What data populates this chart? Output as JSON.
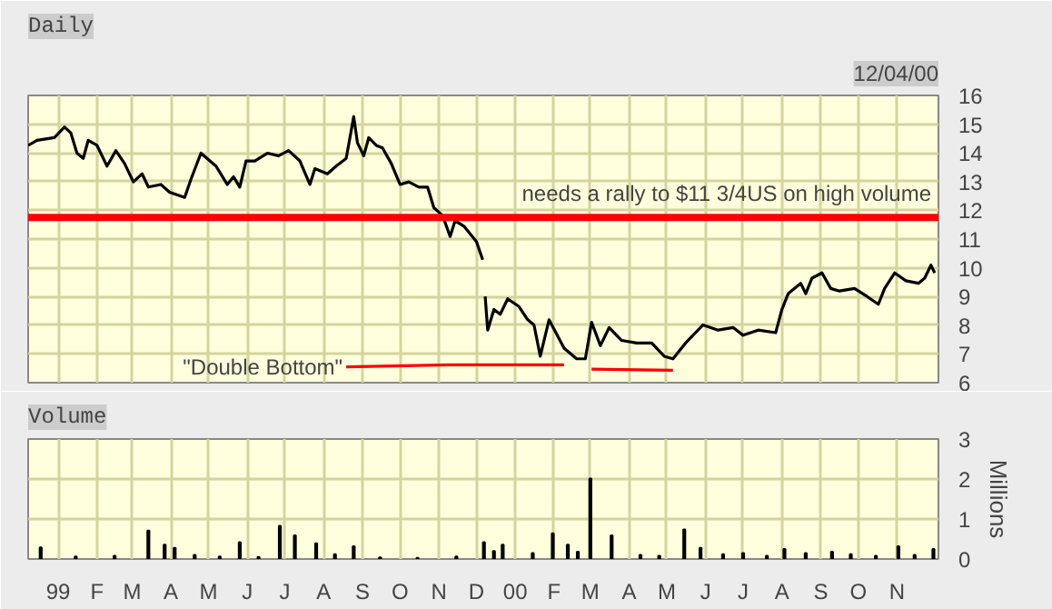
{
  "chart_data": [
    {
      "type": "line",
      "title": "Daily",
      "subtitle": "12/04/00",
      "xlim": [
        "1998-12-08",
        "2000-12-04"
      ],
      "ylim": [
        6,
        16
      ],
      "yticks": [
        6,
        7,
        8,
        9,
        10,
        11,
        12,
        13,
        14,
        15,
        16
      ],
      "xticks": [
        {
          "value": "1999-01-01",
          "label": null
        },
        {
          "value": "1999-02-01",
          "label": null
        },
        {
          "value": "1999-03-01",
          "label": null
        },
        {
          "value": "1999-04-01",
          "label": null
        },
        {
          "value": "1999-05-01",
          "label": null
        },
        {
          "value": "1999-06-01",
          "label": null
        },
        {
          "value": "1999-07-01",
          "label": null
        },
        {
          "value": "1999-08-01",
          "label": null
        },
        {
          "value": "1999-09-01",
          "label": null
        },
        {
          "value": "1999-10-01",
          "label": null
        },
        {
          "value": "1999-11-01",
          "label": null
        },
        {
          "value": "1999-12-01",
          "label": null
        },
        {
          "value": "2000-01-01",
          "label": null
        },
        {
          "value": "2000-02-01",
          "label": null
        },
        {
          "value": "2000-03-01",
          "label": null
        },
        {
          "value": "2000-04-01",
          "label": null
        },
        {
          "value": "2000-05-01",
          "label": null
        },
        {
          "value": "2000-06-01",
          "label": null
        },
        {
          "value": "2000-07-01",
          "label": null
        },
        {
          "value": "2000-08-01",
          "label": null
        },
        {
          "value": "2000-09-01",
          "label": null
        },
        {
          "value": "2000-10-01",
          "label": null
        },
        {
          "value": "2000-11-01",
          "label": null
        }
      ],
      "tick_labels": "y",
      "grid": true,
      "line_style": "solid",
      "marker": "none",
      "series": [
        {
          "color": "#000000",
          "x": [
            "1998-12-08",
            "1998-12-15",
            "1998-12-29",
            "1999-01-06",
            "1999-01-11",
            "1999-01-16",
            "1999-01-21",
            "1999-01-25",
            "1999-02-01",
            "1999-02-09",
            "1999-02-16",
            "1999-02-23",
            "1999-03-02",
            "1999-03-09",
            "1999-03-14",
            "1999-03-24",
            "1999-03-31",
            "1999-04-12",
            "1999-04-17",
            "1999-04-25",
            "1999-05-07",
            "1999-05-16",
            "1999-05-21",
            "1999-05-26",
            "1999-05-31",
            "1999-06-07",
            "1999-06-17",
            "1999-06-26",
            "1999-07-04",
            "1999-07-13",
            "1999-07-21",
            "1999-07-25",
            "1999-08-04",
            "1999-08-11",
            "1999-08-19",
            "1999-08-25",
            "1999-08-28",
            "1999-09-02",
            "1999-09-06",
            "1999-09-12",
            "1999-09-17",
            "1999-09-24",
            "1999-10-01",
            "1999-10-08",
            "1999-10-16",
            "1999-10-23",
            "1999-10-28",
            "1999-11-04",
            "1999-11-10",
            "1999-11-14",
            "1999-11-21",
            "1999-11-26",
            "1999-12-01",
            "1999-12-06",
            "1999-12-07",
            "1999-12-08",
            "1999-12-10",
            "1999-12-15",
            "1999-12-20",
            "1999-12-26",
            "2000-01-04",
            "2000-01-11",
            "2000-01-16",
            "2000-01-21",
            "2000-01-28",
            "2000-02-09",
            "2000-02-19",
            "2000-02-26",
            "2000-03-02",
            "2000-03-09",
            "2000-03-16",
            "2000-03-26",
            "2000-04-07",
            "2000-04-19",
            "2000-04-29",
            "2000-05-06",
            "2000-05-16",
            "2000-05-30",
            "2000-06-11",
            "2000-06-23",
            "2000-07-01",
            "2000-07-13",
            "2000-07-27",
            "2000-08-01",
            "2000-08-06",
            "2000-08-16",
            "2000-08-20",
            "2000-08-25",
            "2000-09-02",
            "2000-09-09",
            "2000-09-16",
            "2000-09-28",
            "2000-10-08",
            "2000-10-17",
            "2000-10-22",
            "2000-10-30",
            "2000-11-08",
            "2000-11-18",
            "2000-11-23",
            "2000-11-28",
            "2000-12-01"
          ],
          "values": [
            14.26,
            14.44,
            14.53,
            14.9,
            14.7,
            13.99,
            13.81,
            14.44,
            14.26,
            13.54,
            14.08,
            13.63,
            12.99,
            13.27,
            12.81,
            12.9,
            12.63,
            12.45,
            13.08,
            13.99,
            13.54,
            12.9,
            13.17,
            12.81,
            13.72,
            13.72,
            13.99,
            13.9,
            14.08,
            13.72,
            12.9,
            13.45,
            13.27,
            13.54,
            13.81,
            15.26,
            14.35,
            13.9,
            14.53,
            14.26,
            14.17,
            13.63,
            12.9,
            12.99,
            12.81,
            12.81,
            12.09,
            11.82,
            11.09,
            11.64,
            11.45,
            11.18,
            10.91,
            10.28,
            null,
            9.0,
            7.83,
            8.55,
            8.38,
            8.92,
            8.65,
            8.19,
            8.01,
            6.92,
            8.19,
            7.2,
            6.83,
            6.83,
            8.1,
            7.29,
            7.92,
            7.47,
            7.38,
            7.38,
            6.92,
            6.83,
            7.38,
            8.01,
            7.83,
            7.92,
            7.65,
            7.83,
            7.74,
            8.55,
            9.1,
            9.46,
            9.1,
            9.64,
            9.82,
            9.28,
            9.19,
            9.28,
            9.0,
            8.73,
            9.28,
            9.82,
            9.55,
            9.46,
            9.64,
            10.09,
            9.82
          ]
        },
        {
          "type": "line",
          "color": "#ff0000",
          "x": [
            "1999-08-19",
            "1999-11-10",
            "2000-02-09",
            "2000-02-10",
            "2000-03-02",
            "2000-05-06"
          ],
          "values": [
            6.55,
            6.62,
            6.62,
            null,
            6.47,
            6.43
          ]
        }
      ],
      "ref_lines": [
        {
          "axis": "y",
          "value": 11.75,
          "color": "#ff0000"
        }
      ],
      "annotations": [
        "needs a rally to $11 3/4US on high volume",
        "\"Double Bottom\""
      ]
    },
    {
      "type": "bar",
      "title": "Volume",
      "ylabel": "Millions",
      "xlim": [
        "1998-12-08",
        "2000-12-04"
      ],
      "ylim": [
        0,
        3
      ],
      "yticks": [
        0,
        1,
        2,
        3
      ],
      "grid": true,
      "xticks": [
        {
          "value": "1999-01-01",
          "label": "99"
        },
        {
          "value": "1999-02-01",
          "label": "F"
        },
        {
          "value": "1999-03-01",
          "label": "M"
        },
        {
          "value": "1999-04-01",
          "label": "A"
        },
        {
          "value": "1999-05-01",
          "label": "M"
        },
        {
          "value": "1999-06-01",
          "label": "J"
        },
        {
          "value": "1999-07-01",
          "label": "J"
        },
        {
          "value": "1999-08-01",
          "label": "A"
        },
        {
          "value": "1999-09-01",
          "label": "S"
        },
        {
          "value": "1999-10-01",
          "label": "O"
        },
        {
          "value": "1999-11-01",
          "label": "N"
        },
        {
          "value": "1999-12-01",
          "label": "D"
        },
        {
          "value": "2000-01-01",
          "label": "00"
        },
        {
          "value": "2000-02-01",
          "label": "F"
        },
        {
          "value": "2000-03-01",
          "label": "M"
        },
        {
          "value": "2000-04-01",
          "label": "A"
        },
        {
          "value": "2000-05-01",
          "label": "M"
        },
        {
          "value": "2000-06-01",
          "label": "J"
        },
        {
          "value": "2000-07-01",
          "label": "J"
        },
        {
          "value": "2000-08-01",
          "label": "A"
        },
        {
          "value": "2000-09-01",
          "label": "S"
        },
        {
          "value": "2000-10-01",
          "label": "O"
        },
        {
          "value": "2000-11-01",
          "label": "N"
        }
      ],
      "series": [
        {
          "color": "#000000",
          "x": [
            "1998-12-18",
            "1999-01-15",
            "1999-02-15",
            "1999-03-14",
            "1999-03-27",
            "1999-04-04",
            "1999-04-20",
            "1999-05-10",
            "1999-05-26",
            "1999-06-10",
            "1999-06-27",
            "1999-07-09",
            "1999-07-26",
            "1999-08-10",
            "1999-08-25",
            "1999-09-15",
            "1999-10-15",
            "1999-11-15",
            "1999-12-07",
            "1999-12-15",
            "1999-12-22",
            "2000-01-15",
            "2000-01-31",
            "2000-02-12",
            "2000-02-20",
            "2000-03-01",
            "2000-03-18",
            "2000-04-10",
            "2000-04-25",
            "2000-05-15",
            "2000-05-28",
            "2000-06-15",
            "2000-07-01",
            "2000-07-20",
            "2000-08-03",
            "2000-08-20",
            "2000-09-10",
            "2000-09-25",
            "2000-10-15",
            "2000-11-02",
            "2000-11-15",
            "2000-11-30"
          ],
          "values": [
            0.29,
            0.06,
            0.08,
            0.71,
            0.36,
            0.28,
            0.1,
            0.06,
            0.42,
            0.05,
            0.83,
            0.59,
            0.39,
            0.12,
            0.32,
            0.04,
            0.03,
            0.06,
            0.42,
            0.2,
            0.36,
            0.15,
            0.64,
            0.36,
            0.18,
            2.01,
            0.59,
            0.1,
            0.08,
            0.74,
            0.28,
            0.12,
            0.15,
            0.08,
            0.25,
            0.15,
            0.18,
            0.12,
            0.08,
            0.32,
            0.1,
            0.25
          ]
        }
      ]
    }
  ]
}
